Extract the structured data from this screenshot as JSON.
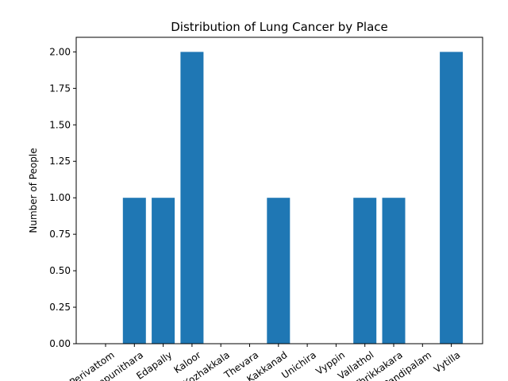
{
  "chart_data": {
    "type": "bar",
    "title": "Distribution of Lung Cancer by Place",
    "xlabel": "",
    "ylabel": "Number of People",
    "categories": [
      "Perivattom",
      "Thrippunithara",
      "Edapally",
      "Kaloor",
      "Kozhakkala",
      "Thevara",
      "Kakkanad",
      "Unichira",
      "Vyppin",
      "Vallathol",
      "Thrikkakara",
      "Pandipalam",
      "Vytilla"
    ],
    "values": [
      0,
      1,
      1,
      2,
      0,
      0,
      1,
      0,
      0,
      1,
      1,
      0,
      2
    ],
    "ylim": [
      0,
      2.1
    ],
    "yticks": [
      "0.00",
      "0.25",
      "0.50",
      "0.75",
      "1.00",
      "1.25",
      "1.50",
      "1.75",
      "2.00"
    ],
    "bar_color": "#1f77b4",
    "grid": false,
    "legend": "none",
    "xtick_rotation_deg": -35
  }
}
